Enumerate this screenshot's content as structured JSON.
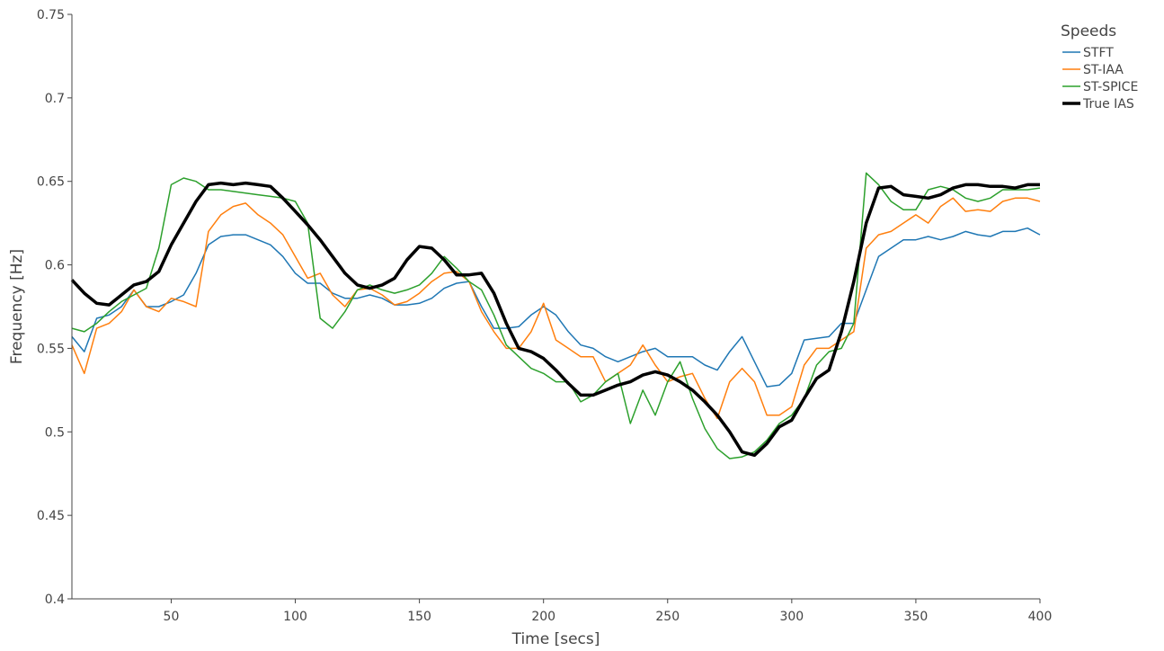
{
  "chart_data": {
    "type": "line",
    "title": "",
    "xlabel": "Time [secs]",
    "ylabel": "Frequency [Hz]",
    "xlim": [
      10,
      400
    ],
    "ylim": [
      0.4,
      0.75
    ],
    "x_ticks": [
      50,
      100,
      150,
      200,
      250,
      300,
      350,
      400
    ],
    "y_ticks": [
      0.4,
      0.45,
      0.5,
      0.55,
      0.6,
      0.65,
      0.7,
      0.75
    ],
    "y_tick_labels": [
      "0.4",
      "0.45",
      "0.5",
      "0.55",
      "0.6",
      "0.65",
      "0.7",
      "0.75"
    ],
    "grid": false,
    "legend": {
      "title": "Speeds",
      "position": "top-right"
    },
    "series": [
      {
        "name": "STFT",
        "color": "#1f77b4",
        "x": [
          10,
          15,
          20,
          25,
          30,
          35,
          40,
          45,
          50,
          55,
          60,
          65,
          70,
          75,
          80,
          85,
          90,
          95,
          100,
          105,
          110,
          115,
          120,
          125,
          130,
          135,
          140,
          145,
          150,
          155,
          160,
          165,
          170,
          175,
          180,
          185,
          190,
          195,
          200,
          205,
          210,
          215,
          220,
          225,
          230,
          235,
          240,
          245,
          250,
          255,
          260,
          265,
          270,
          275,
          280,
          285,
          290,
          295,
          300,
          305,
          310,
          315,
          320,
          325,
          330,
          335,
          340,
          345,
          350,
          355,
          360,
          365,
          370,
          375,
          380,
          385,
          390,
          395,
          400
        ],
        "y": [
          0.557,
          0.548,
          0.568,
          0.57,
          0.575,
          0.585,
          0.575,
          0.575,
          0.578,
          0.582,
          0.595,
          0.612,
          0.617,
          0.618,
          0.618,
          0.615,
          0.612,
          0.605,
          0.595,
          0.589,
          0.589,
          0.583,
          0.58,
          0.58,
          0.582,
          0.58,
          0.576,
          0.576,
          0.577,
          0.58,
          0.586,
          0.589,
          0.59,
          0.575,
          0.562,
          0.562,
          0.563,
          0.57,
          0.575,
          0.57,
          0.56,
          0.552,
          0.55,
          0.545,
          0.542,
          0.545,
          0.548,
          0.55,
          0.545,
          0.545,
          0.545,
          0.54,
          0.537,
          0.548,
          0.557,
          0.542,
          0.527,
          0.528,
          0.535,
          0.555,
          0.556,
          0.557,
          0.565,
          0.565,
          0.585,
          0.605,
          0.61,
          0.615,
          0.615,
          0.617,
          0.615,
          0.617,
          0.62,
          0.618,
          0.617,
          0.62,
          0.62,
          0.622,
          0.618
        ]
      },
      {
        "name": "ST-IAA",
        "color": "#ff7f0e",
        "x": [
          10,
          15,
          20,
          25,
          30,
          35,
          40,
          45,
          50,
          55,
          60,
          65,
          70,
          75,
          80,
          85,
          90,
          95,
          100,
          105,
          110,
          115,
          120,
          125,
          130,
          135,
          140,
          145,
          150,
          155,
          160,
          165,
          170,
          175,
          180,
          185,
          190,
          195,
          200,
          205,
          210,
          215,
          220,
          225,
          230,
          235,
          240,
          245,
          250,
          255,
          260,
          265,
          270,
          275,
          280,
          285,
          290,
          295,
          300,
          305,
          310,
          315,
          320,
          325,
          330,
          335,
          340,
          345,
          350,
          355,
          360,
          365,
          370,
          375,
          380,
          385,
          390,
          395,
          400
        ],
        "y": [
          0.552,
          0.535,
          0.562,
          0.565,
          0.572,
          0.585,
          0.575,
          0.572,
          0.58,
          0.578,
          0.575,
          0.62,
          0.63,
          0.635,
          0.637,
          0.63,
          0.625,
          0.618,
          0.605,
          0.592,
          0.595,
          0.582,
          0.575,
          0.585,
          0.586,
          0.582,
          0.576,
          0.578,
          0.583,
          0.59,
          0.595,
          0.596,
          0.59,
          0.572,
          0.56,
          0.55,
          0.55,
          0.56,
          0.577,
          0.555,
          0.55,
          0.545,
          0.545,
          0.53,
          0.535,
          0.54,
          0.552,
          0.54,
          0.53,
          0.533,
          0.535,
          0.52,
          0.508,
          0.53,
          0.538,
          0.53,
          0.51,
          0.51,
          0.515,
          0.54,
          0.55,
          0.55,
          0.555,
          0.56,
          0.61,
          0.618,
          0.62,
          0.625,
          0.63,
          0.625,
          0.635,
          0.64,
          0.632,
          0.633,
          0.632,
          0.638,
          0.64,
          0.64,
          0.638
        ]
      },
      {
        "name": "ST-SPICE",
        "color": "#2ca02c",
        "x": [
          10,
          15,
          20,
          25,
          30,
          35,
          40,
          45,
          50,
          55,
          60,
          65,
          70,
          75,
          80,
          85,
          90,
          95,
          100,
          105,
          110,
          115,
          120,
          125,
          130,
          135,
          140,
          145,
          150,
          155,
          160,
          165,
          170,
          175,
          180,
          185,
          190,
          195,
          200,
          205,
          210,
          215,
          220,
          225,
          230,
          235,
          240,
          245,
          250,
          255,
          260,
          265,
          270,
          275,
          280,
          285,
          290,
          295,
          300,
          305,
          310,
          315,
          320,
          325,
          330,
          335,
          340,
          345,
          350,
          355,
          360,
          365,
          370,
          375,
          380,
          385,
          390,
          395,
          400
        ],
        "y": [
          0.562,
          0.56,
          0.565,
          0.572,
          0.578,
          0.582,
          0.586,
          0.61,
          0.648,
          0.652,
          0.65,
          0.645,
          0.645,
          0.644,
          0.643,
          0.642,
          0.641,
          0.64,
          0.638,
          0.625,
          0.568,
          0.562,
          0.572,
          0.585,
          0.588,
          0.585,
          0.583,
          0.585,
          0.588,
          0.595,
          0.605,
          0.598,
          0.59,
          0.585,
          0.57,
          0.552,
          0.545,
          0.538,
          0.535,
          0.53,
          0.53,
          0.518,
          0.522,
          0.53,
          0.535,
          0.505,
          0.525,
          0.51,
          0.53,
          0.542,
          0.52,
          0.502,
          0.49,
          0.484,
          0.485,
          0.488,
          0.495,
          0.505,
          0.51,
          0.52,
          0.54,
          0.548,
          0.55,
          0.565,
          0.655,
          0.648,
          0.638,
          0.633,
          0.633,
          0.645,
          0.647,
          0.645,
          0.64,
          0.638,
          0.64,
          0.645,
          0.645,
          0.645,
          0.646
        ]
      },
      {
        "name": "True IAS",
        "color": "#000000",
        "x": [
          10,
          15,
          20,
          25,
          30,
          35,
          40,
          45,
          50,
          55,
          60,
          65,
          70,
          75,
          80,
          85,
          90,
          95,
          100,
          105,
          110,
          115,
          120,
          125,
          130,
          135,
          140,
          145,
          150,
          155,
          160,
          165,
          170,
          175,
          180,
          185,
          190,
          195,
          200,
          205,
          210,
          215,
          220,
          225,
          230,
          235,
          240,
          245,
          250,
          255,
          260,
          265,
          270,
          275,
          280,
          285,
          290,
          295,
          300,
          305,
          310,
          315,
          320,
          325,
          330,
          335,
          340,
          345,
          350,
          355,
          360,
          365,
          370,
          375,
          380,
          385,
          390,
          395,
          400
        ],
        "y": [
          0.591,
          0.583,
          0.577,
          0.576,
          0.582,
          0.588,
          0.59,
          0.596,
          0.612,
          0.625,
          0.638,
          0.648,
          0.649,
          0.648,
          0.649,
          0.648,
          0.647,
          0.64,
          0.632,
          0.624,
          0.615,
          0.605,
          0.595,
          0.588,
          0.586,
          0.588,
          0.592,
          0.603,
          0.611,
          0.61,
          0.603,
          0.594,
          0.594,
          0.595,
          0.583,
          0.565,
          0.55,
          0.548,
          0.544,
          0.537,
          0.529,
          0.522,
          0.522,
          0.525,
          0.528,
          0.53,
          0.534,
          0.536,
          0.534,
          0.53,
          0.525,
          0.518,
          0.51,
          0.5,
          0.488,
          0.486,
          0.493,
          0.503,
          0.507,
          0.52,
          0.532,
          0.537,
          0.56,
          0.59,
          0.625,
          0.646,
          0.647,
          0.642,
          0.641,
          0.64,
          0.642,
          0.646,
          0.648,
          0.648,
          0.647,
          0.647,
          0.646,
          0.648,
          0.648
        ]
      }
    ]
  }
}
